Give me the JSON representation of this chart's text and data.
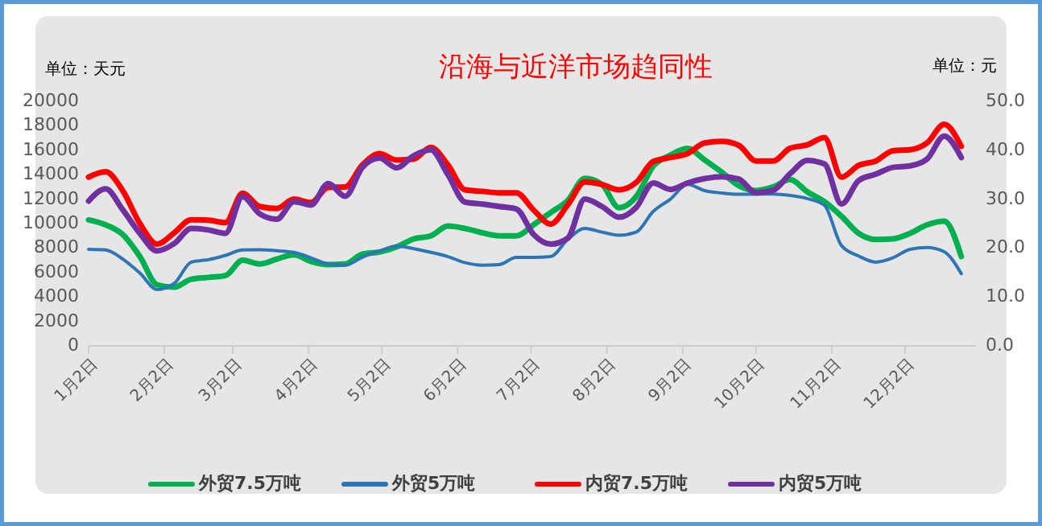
{
  "chart_data": {
    "type": "line",
    "title": "沿海与近洋市场趋同性",
    "ylabel": "单位：天元",
    "y2label": "单位：元",
    "x": [
      "--01-02",
      "--01-09",
      "--01-16",
      "--01-23",
      "--01-30",
      "--02-06",
      "--02-13",
      "--02-20",
      "--02-27",
      "--03-06",
      "--03-13",
      "--03-20",
      "--03-27",
      "--04-03",
      "--04-10",
      "--04-17",
      "--04-24",
      "--05-01",
      "--05-08",
      "--05-15",
      "--05-22",
      "--05-29",
      "--06-05",
      "--06-12",
      "--06-19",
      "--06-26",
      "--07-03",
      "--07-10",
      "--07-17",
      "--07-24",
      "--07-31",
      "--08-07",
      "--08-14",
      "--08-21",
      "--08-28",
      "--09-04",
      "--09-11",
      "--09-18",
      "--09-25",
      "--10-02",
      "--10-09",
      "--10-16",
      "--10-23",
      "--10-30",
      "--11-06",
      "--11-13",
      "--11-20",
      "--11-27",
      "--12-04",
      "--12-11",
      "--12-18",
      "--12-25"
    ],
    "xlim": [
      "--01-02",
      "--12-31"
    ],
    "xticks": [
      {
        "value": "--01-02",
        "label": "1月2日"
      },
      {
        "value": "--02-02",
        "label": "2月2日"
      },
      {
        "value": "--03-02",
        "label": "3月2日"
      },
      {
        "value": "--04-02",
        "label": "4月2日"
      },
      {
        "value": "--05-02",
        "label": "5月2日"
      },
      {
        "value": "--06-02",
        "label": "6月2日"
      },
      {
        "value": "--07-02",
        "label": "7月2日"
      },
      {
        "value": "--08-02",
        "label": "8月2日"
      },
      {
        "value": "--09-02",
        "label": "9月2日"
      },
      {
        "value": "--10-02",
        "label": "10月2日"
      },
      {
        "value": "--11-02",
        "label": "11月2日"
      },
      {
        "value": "--12-02",
        "label": "12月2日"
      }
    ],
    "ylim": [
      0,
      20000
    ],
    "yticks": [
      0,
      2000,
      4000,
      6000,
      8000,
      10000,
      12000,
      14000,
      16000,
      18000,
      20000
    ],
    "y2lim": [
      0,
      50
    ],
    "y2ticks": [
      {
        "value": 0,
        "label": "0.0"
      },
      {
        "value": 10,
        "label": "10.0"
      },
      {
        "value": 20,
        "label": "20.0"
      },
      {
        "value": 30,
        "label": "30.0"
      },
      {
        "value": 40,
        "label": "40.0"
      },
      {
        "value": 50,
        "label": "50.0"
      }
    ],
    "legend": "bottom",
    "marker": "none",
    "line_style": "solid",
    "series": [
      {
        "name": "外贸7.5万吨",
        "color": "#00b050",
        "values": [
          10300,
          9900,
          9100,
          7300,
          5000,
          4800,
          5450,
          5600,
          5750,
          7000,
          6700,
          7100,
          7450,
          6900,
          6650,
          6700,
          7500,
          7670,
          8100,
          8750,
          9000,
          9800,
          9600,
          9250,
          9000,
          9000,
          9900,
          10900,
          11900,
          13700,
          13200,
          11300,
          12200,
          14700,
          15600,
          16150,
          15200,
          14200,
          13100,
          12700,
          13000,
          13600,
          12600,
          11800,
          10600,
          9200,
          8700,
          8750,
          9200,
          9900,
          10200,
          7300
        ]
      },
      {
        "name": "外贸5万吨",
        "color": "#2e75b6",
        "values": [
          7900,
          7850,
          7100,
          5950,
          4600,
          5100,
          6850,
          7050,
          7400,
          7850,
          7870,
          7780,
          7650,
          7200,
          6700,
          6600,
          7250,
          7750,
          8150,
          7950,
          7650,
          7300,
          6800,
          6600,
          6650,
          7240,
          7240,
          7300,
          8700,
          9600,
          9300,
          9050,
          9300,
          11000,
          12000,
          13200,
          12700,
          12500,
          12400,
          12400,
          12420,
          12300,
          12050,
          11500,
          8200,
          7350,
          6850,
          7200,
          7900,
          8050,
          7700,
          5900
        ]
      },
      {
        "name": "内贸7.5万吨",
        "color": "#ff0000",
        "axis": "y2",
        "values": [
          34.5,
          35.6,
          31.7,
          25.0,
          20.8,
          23.1,
          25.8,
          25.7,
          25.2,
          31.2,
          28.5,
          28.1,
          30.0,
          29.3,
          32.4,
          32.5,
          37.0,
          39.3,
          38.0,
          38.2,
          40.6,
          37.0,
          31.9,
          31.6,
          31.3,
          31.3,
          27.8,
          24.9,
          28.8,
          33.5,
          33.0,
          31.9,
          33.4,
          37.7,
          38.5,
          39.3,
          41.5,
          41.8,
          41.0,
          37.8,
          37.8,
          40.4,
          41.1,
          42.6,
          34.5,
          36.9,
          37.8,
          39.9,
          40.1,
          41.5,
          45.3,
          40.8
        ]
      },
      {
        "name": "内贸5万吨",
        "color": "#7030a0",
        "axis": "y2",
        "values": [
          29.6,
          32.1,
          27.8,
          23.0,
          19.4,
          20.9,
          24.0,
          23.7,
          23.0,
          30.5,
          27.0,
          25.9,
          29.5,
          28.8,
          33.2,
          30.6,
          36.5,
          38.4,
          36.4,
          38.9,
          40.1,
          35.0,
          29.4,
          29.0,
          28.5,
          28.0,
          22.8,
          20.8,
          22.0,
          30.0,
          28.5,
          26.3,
          28.3,
          33.3,
          32.0,
          33.3,
          34.2,
          34.6,
          34.1,
          31.3,
          31.8,
          35.2,
          37.9,
          37.2,
          29.0,
          33.8,
          35.1,
          36.5,
          36.8,
          38.2,
          42.9,
          38.5
        ]
      }
    ]
  }
}
